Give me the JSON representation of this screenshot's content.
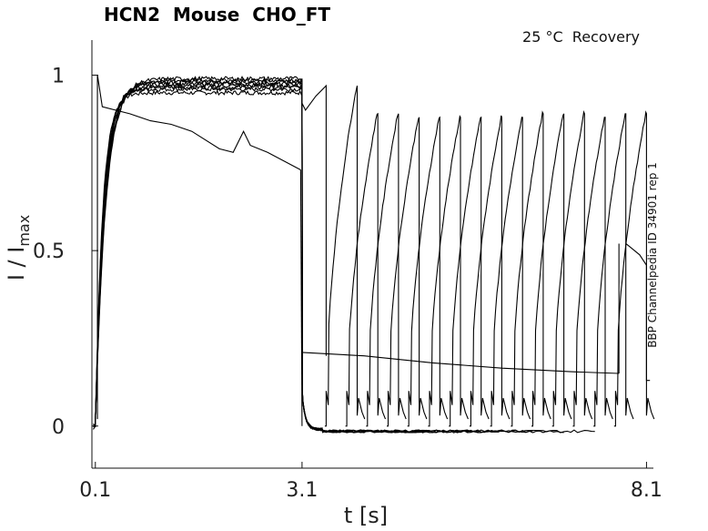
{
  "chart_data": {
    "type": "line",
    "title": "HCN2  Mouse  CHO_FT",
    "annotation": "25 °C  Recovery",
    "side_label": "BBP Channelpedia ID 34901 rep 1",
    "xlabel": "t [s]",
    "ylabel_main": "I / I",
    "ylabel_sub": "max",
    "x_ticks": [
      "0.1",
      "3.1",
      "8.1"
    ],
    "x_tick_values": [
      0.1,
      3.1,
      8.1
    ],
    "y_ticks": [
      "0",
      "0.5",
      "1"
    ],
    "y_tick_values": [
      0,
      0.5,
      1
    ],
    "xlim": [
      0.05,
      8.2
    ],
    "ylim": [
      -0.12,
      1.1
    ],
    "grid": false,
    "line_color": "#000000",
    "activation": {
      "start": 0.1,
      "end": 3.1,
      "rise_tau": 0.13,
      "sweep_plateaus": [
        0.95,
        0.96,
        0.965,
        0.97,
        0.975,
        0.98,
        0.985,
        0.99
      ]
    },
    "recovery_onsets": [
      3.45,
      3.75,
      4.05,
      4.35,
      4.65,
      4.95,
      5.25,
      5.55,
      5.85,
      6.15,
      6.45,
      6.75,
      7.05,
      7.35,
      7.65
    ],
    "recovery_peaks": [
      0.97,
      0.89,
      0.89,
      0.88,
      0.88,
      0.88,
      0.88,
      0.88,
      0.88,
      0.89,
      0.89,
      0.89,
      0.88,
      0.89,
      0.89
    ],
    "rundown_trace": {
      "x": [
        0.13,
        0.2,
        0.6,
        0.9,
        1.2,
        1.5,
        1.9,
        2.1,
        2.25,
        2.35,
        2.6,
        3.08
      ],
      "y": [
        1.0,
        0.91,
        0.89,
        0.87,
        0.86,
        0.84,
        0.79,
        0.78,
        0.84,
        0.8,
        0.78,
        0.73
      ]
    },
    "tail_trace": {
      "x": [
        3.1,
        4.0,
        5.0,
        6.0,
        7.0,
        7.7
      ],
      "y": [
        0.21,
        0.2,
        0.18,
        0.165,
        0.155,
        0.15
      ]
    },
    "late_trace": {
      "x": [
        7.8,
        7.85,
        8.0,
        8.1
      ],
      "y": [
        0.52,
        0.51,
        0.49,
        0.46
      ]
    }
  }
}
